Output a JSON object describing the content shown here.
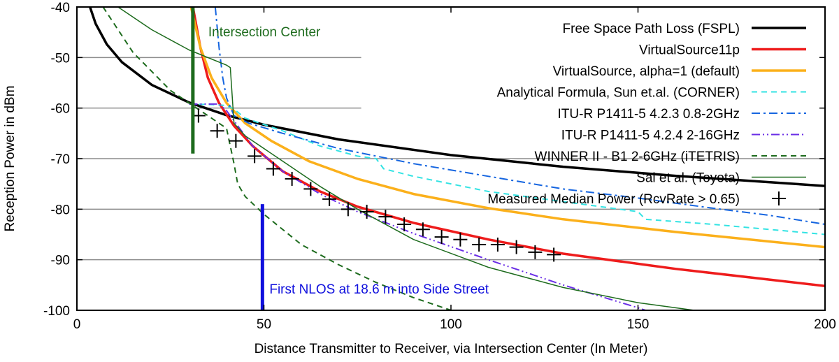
{
  "chart_data": {
    "type": "line",
    "xlabel": "Distance Transmitter to Receiver, via Intersection Center (In Meter)",
    "ylabel": "Reception Power in dBm",
    "xlim": [
      0,
      200
    ],
    "ylim": [
      -100,
      -40
    ],
    "x_ticks": [
      0,
      50,
      100,
      150,
      200
    ],
    "y_ticks": [
      -40,
      -50,
      -60,
      -70,
      -80,
      -90,
      -100
    ],
    "grid": "horizontal lines at -50, -60, -70, -80, -90 (left part)",
    "legend_position": "top-right",
    "series": [
      {
        "name": "Free Space Path Loss (FSPL)",
        "color": "#000000",
        "style": "solid",
        "points": [
          [
            3.5,
            -40
          ],
          [
            5,
            -43.3
          ],
          [
            8,
            -47.4
          ],
          [
            12,
            -50.9
          ],
          [
            20,
            -55.4
          ],
          [
            30,
            -58.9
          ],
          [
            40,
            -61.4
          ],
          [
            50,
            -63.3
          ],
          [
            70,
            -66.2
          ],
          [
            100,
            -69.3
          ],
          [
            130,
            -71.6
          ],
          [
            160,
            -73.4
          ],
          [
            200,
            -75.4
          ]
        ]
      },
      {
        "name": "VirtualSource11p",
        "color": "#ee1c1c",
        "style": "solid",
        "points": [
          [
            31,
            -40
          ],
          [
            33,
            -48
          ],
          [
            35,
            -54
          ],
          [
            38,
            -59
          ],
          [
            42,
            -63.5
          ],
          [
            47,
            -67.5
          ],
          [
            55,
            -72.5
          ],
          [
            65,
            -76.5
          ],
          [
            75,
            -79.5
          ],
          [
            90,
            -82.7
          ],
          [
            110,
            -86
          ],
          [
            130,
            -88.8
          ],
          [
            160,
            -91.8
          ],
          [
            200,
            -95.2
          ]
        ]
      },
      {
        "name": "VirtualSource, alpha=1 (default)",
        "color": "#fbb01b",
        "style": "solid",
        "points": [
          [
            30.5,
            -40
          ],
          [
            33,
            -48
          ],
          [
            36,
            -54
          ],
          [
            40,
            -59
          ],
          [
            45,
            -63
          ],
          [
            52,
            -66.5
          ],
          [
            62,
            -70.5
          ],
          [
            75,
            -74
          ],
          [
            90,
            -77
          ],
          [
            110,
            -79.8
          ],
          [
            130,
            -82
          ],
          [
            160,
            -84.5
          ],
          [
            200,
            -87.5
          ]
        ]
      },
      {
        "name": "Analytical Formula, Sun et.al. (CORNER)",
        "color": "#33e3e3",
        "style": "dash",
        "points": [
          [
            30,
            -59.2
          ],
          [
            36,
            -59.3
          ],
          [
            40,
            -59.5
          ],
          [
            42,
            -60.2
          ],
          [
            45,
            -62
          ],
          [
            55,
            -64.5
          ],
          [
            65,
            -67.5
          ],
          [
            75,
            -69.5
          ],
          [
            80,
            -70
          ],
          [
            82,
            -72
          ],
          [
            90,
            -73.5
          ],
          [
            110,
            -76.5
          ],
          [
            130,
            -78.5
          ],
          [
            150,
            -80.5
          ],
          [
            152,
            -82
          ],
          [
            170,
            -83
          ],
          [
            200,
            -85
          ]
        ]
      },
      {
        "name": "ITU-R P1411-5 4.2.3 0.8-2GHz",
        "color": "#1565e0",
        "style": "dashdot",
        "points": [
          [
            37,
            -40
          ],
          [
            38,
            -48
          ],
          [
            39,
            -54
          ],
          [
            40,
            -58
          ],
          [
            42,
            -61.5
          ],
          [
            46,
            -63
          ],
          [
            55,
            -65
          ],
          [
            70,
            -68
          ],
          [
            90,
            -71
          ],
          [
            110,
            -73.5
          ],
          [
            130,
            -76
          ],
          [
            150,
            -77.8
          ],
          [
            170,
            -79.8
          ],
          [
            185,
            -81.2
          ],
          [
            200,
            -83
          ]
        ]
      },
      {
        "name": "ITU-R P1411-5 4.2.4 2-16GHz",
        "color": "#6a2ee6",
        "style": "dashdotdot",
        "points": [
          [
            30,
            -59.2
          ],
          [
            38,
            -59.2
          ],
          [
            40,
            -60.5
          ],
          [
            43,
            -63.5
          ],
          [
            47,
            -67.5
          ],
          [
            55,
            -72.5
          ],
          [
            65,
            -77
          ],
          [
            75,
            -80.5
          ],
          [
            90,
            -84.8
          ],
          [
            110,
            -90
          ],
          [
            130,
            -95
          ],
          [
            150,
            -99.5
          ],
          [
            152,
            -100
          ]
        ]
      },
      {
        "name": "WINNER II - B1 2-6GHz (iTETRIS)",
        "color": "#1d6b1d",
        "style": "dash",
        "points": [
          [
            7,
            -40
          ],
          [
            15,
            -49
          ],
          [
            25,
            -56.5
          ],
          [
            35,
            -61.5
          ],
          [
            40,
            -64
          ],
          [
            42,
            -71
          ],
          [
            43,
            -75
          ],
          [
            45,
            -77.5
          ],
          [
            50,
            -81
          ],
          [
            60,
            -87
          ],
          [
            70,
            -91
          ],
          [
            80,
            -94.5
          ],
          [
            90,
            -97.5
          ],
          [
            100,
            -100
          ]
        ]
      },
      {
        "name": "Sai et al. (Toyota)",
        "color": "#1d6b1d",
        "style": "solid-thin",
        "points": [
          [
            11,
            -40
          ],
          [
            20,
            -44.5
          ],
          [
            30,
            -48.5
          ],
          [
            40,
            -51.5
          ],
          [
            41,
            -52
          ],
          [
            42,
            -63
          ],
          [
            45,
            -65.5
          ],
          [
            55,
            -70.5
          ],
          [
            65,
            -75.5
          ],
          [
            75,
            -80
          ],
          [
            90,
            -86
          ],
          [
            110,
            -91.5
          ],
          [
            130,
            -95.5
          ],
          [
            150,
            -98.5
          ],
          [
            165,
            -100
          ]
        ]
      }
    ],
    "measured": {
      "name": "Measured Median Power (RcvRate > 0.65)",
      "marker": "+",
      "x": [
        32.5,
        37.5,
        42.5,
        47.5,
        52.5,
        57.5,
        62.5,
        67.5,
        72.5,
        77.5,
        82.5,
        87.5,
        92.5,
        97.5,
        102.5,
        107.5,
        112.5,
        117.5,
        122.5,
        127.5
      ],
      "y": [
        -61.5,
        -64.5,
        -66.5,
        -69.5,
        -72,
        -74,
        -76,
        -78,
        -80,
        -80.5,
        -81.5,
        -83,
        -84,
        -85.5,
        -86,
        -87,
        -87,
        -87.5,
        -88.5,
        -89
      ]
    },
    "annotations": [
      {
        "text": "Intersection Center",
        "x": 31,
        "color": "#1d6b1d",
        "line_from": -40,
        "line_to": -69
      },
      {
        "text": "First NLOS at 18.6 m into Side Street",
        "x": 49.6,
        "color": "#1010dd",
        "line_from": -79,
        "line_to": -100
      }
    ]
  }
}
